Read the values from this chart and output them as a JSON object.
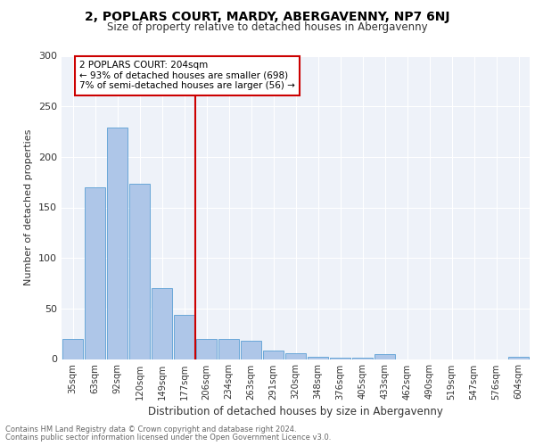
{
  "title": "2, POPLARS COURT, MARDY, ABERGAVENNY, NP7 6NJ",
  "subtitle": "Size of property relative to detached houses in Abergavenny",
  "xlabel": "Distribution of detached houses by size in Abergavenny",
  "ylabel": "Number of detached properties",
  "categories": [
    "35sqm",
    "63sqm",
    "92sqm",
    "120sqm",
    "149sqm",
    "177sqm",
    "206sqm",
    "234sqm",
    "263sqm",
    "291sqm",
    "320sqm",
    "348sqm",
    "376sqm",
    "405sqm",
    "433sqm",
    "462sqm",
    "490sqm",
    "519sqm",
    "547sqm",
    "576sqm",
    "604sqm"
  ],
  "values": [
    20,
    170,
    229,
    173,
    70,
    44,
    20,
    20,
    18,
    8,
    6,
    2,
    1,
    1,
    5,
    0,
    0,
    0,
    0,
    0,
    2
  ],
  "bar_color": "#aec6e8",
  "bar_edge_color": "#5a9fd4",
  "vline_color": "#cc0000",
  "annotation_text": "2 POPLARS COURT: 204sqm\n← 93% of detached houses are smaller (698)\n7% of semi-detached houses are larger (56) →",
  "annotation_box_color": "#cc0000",
  "ylim": [
    0,
    300
  ],
  "yticks": [
    0,
    50,
    100,
    150,
    200,
    250,
    300
  ],
  "background_color": "#eef2f9",
  "footer_line1": "Contains HM Land Registry data © Crown copyright and database right 2024.",
  "footer_line2": "Contains public sector information licensed under the Open Government Licence v3.0."
}
